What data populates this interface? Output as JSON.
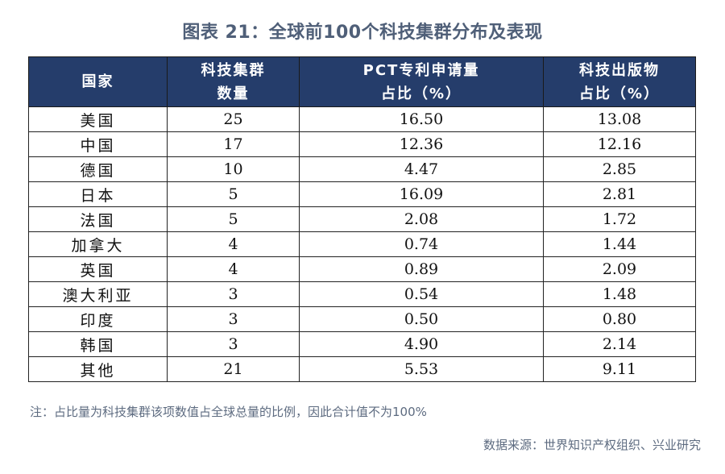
{
  "title": "图表 21：全球前100个科技集群分布及表现",
  "table": {
    "headers": [
      [
        "国家"
      ],
      [
        "科技集群",
        "数量"
      ],
      [
        "PCT专利申请量",
        "占比（%）"
      ],
      [
        "科技出版物",
        "占比（%）"
      ]
    ],
    "rows": [
      {
        "country": "美国",
        "count": "25",
        "pct": "16.50",
        "pub": "13.08"
      },
      {
        "country": "中国",
        "count": "17",
        "pct": "12.36",
        "pub": "12.16"
      },
      {
        "country": "德国",
        "count": "10",
        "pct": "4.47",
        "pub": "2.85"
      },
      {
        "country": "日本",
        "count": "5",
        "pct": "16.09",
        "pub": "2.81"
      },
      {
        "country": "法国",
        "count": "5",
        "pct": "2.08",
        "pub": "1.72"
      },
      {
        "country": "加拿大",
        "count": "4",
        "pct": "0.74",
        "pub": "1.44"
      },
      {
        "country": "英国",
        "count": "4",
        "pct": "0.89",
        "pub": "2.09"
      },
      {
        "country": "澳大利亚",
        "count": "3",
        "pct": "0.54",
        "pub": "1.48"
      },
      {
        "country": "印度",
        "count": "3",
        "pct": "0.50",
        "pub": "0.80"
      },
      {
        "country": "韩国",
        "count": "3",
        "pct": "4.90",
        "pub": "2.14"
      },
      {
        "country": "其他",
        "count": "21",
        "pct": "5.53",
        "pub": "9.11"
      }
    ]
  },
  "note": "注：占比量为科技集群该项数值占全球总量的比例，因此合计值不为100%",
  "source": "数据来源：世界知识产权组织、兴业研究",
  "colors": {
    "header_bg": "#253d6b",
    "header_text": "#ffffff",
    "title_text": "#4f5f78",
    "note_text": "#5d6b80"
  }
}
